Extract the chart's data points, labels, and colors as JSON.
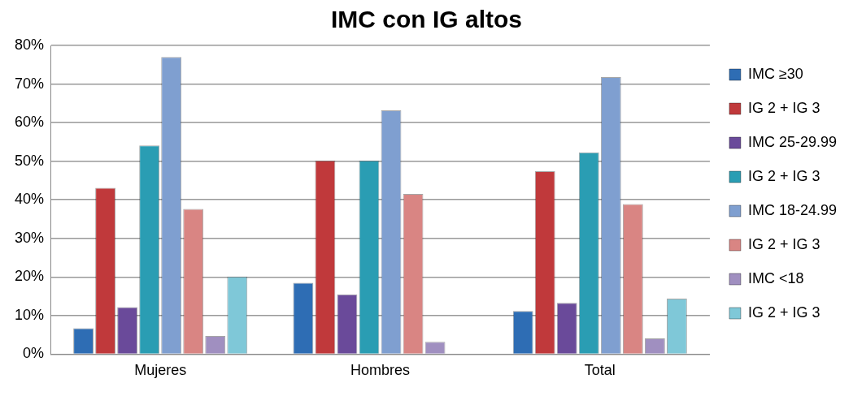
{
  "chart_data": {
    "type": "bar",
    "title": "IMC con IG altos",
    "categories": [
      "Mujeres",
      "Hombres",
      "Total"
    ],
    "series": [
      {
        "name": "IMC ≥30",
        "color": "#2e6db4",
        "values": [
          6.7,
          18.5,
          11.2
        ]
      },
      {
        "name": "IG 2 + IG 3",
        "color": "#c0393b",
        "values": [
          43.1,
          50.2,
          47.4
        ]
      },
      {
        "name": "IMC 25-29.99",
        "color": "#6a4a9a",
        "values": [
          12.2,
          15.5,
          13.3
        ]
      },
      {
        "name": "IG 2 + IG 3",
        "color": "#2a9db3",
        "values": [
          54.1,
          50.2,
          52.3
        ]
      },
      {
        "name": "IMC 18-24.99",
        "color": "#7f9fd0",
        "values": [
          77.0,
          63.2,
          71.8
        ]
      },
      {
        "name": "IG 2 + IG 3",
        "color": "#d98583",
        "values": [
          37.6,
          41.5,
          38.9
        ]
      },
      {
        "name": "IMC <18",
        "color": "#a08fc0",
        "values": [
          4.7,
          3.2,
          4.1
        ]
      },
      {
        "name": "IG 2 + IG 3",
        "color": "#7fc8d8",
        "values": [
          20.1,
          0,
          14.4
        ]
      }
    ],
    "ylim": [
      0,
      80
    ],
    "yticks": [
      {
        "value": 0,
        "label": "0%"
      },
      {
        "value": 10,
        "label": "10%"
      },
      {
        "value": 20,
        "label": "20%"
      },
      {
        "value": 30,
        "label": "30%"
      },
      {
        "value": 40,
        "label": "40%"
      },
      {
        "value": 50,
        "label": "50%"
      },
      {
        "value": 60,
        "label": "60%"
      },
      {
        "value": 70,
        "label": "70%"
      },
      {
        "value": 80,
        "label": "80%"
      }
    ],
    "grid": "y",
    "legend": "right"
  }
}
